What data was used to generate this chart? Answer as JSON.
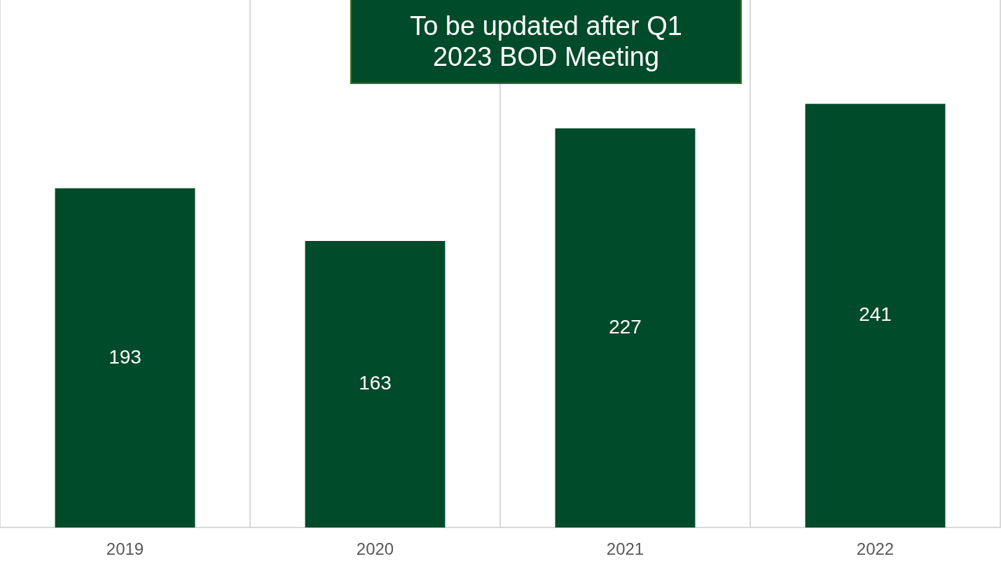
{
  "chart_data": {
    "type": "bar",
    "categories": [
      "2019",
      "2020",
      "2021",
      "2022"
    ],
    "values": [
      193,
      163,
      227,
      241
    ],
    "color": "#004b29",
    "ylim": [
      0,
      300
    ],
    "data_labels": true,
    "grid": "x",
    "legend": false,
    "annotations": [
      "To be updated after Q1 2023 BOD Meeting"
    ]
  }
}
